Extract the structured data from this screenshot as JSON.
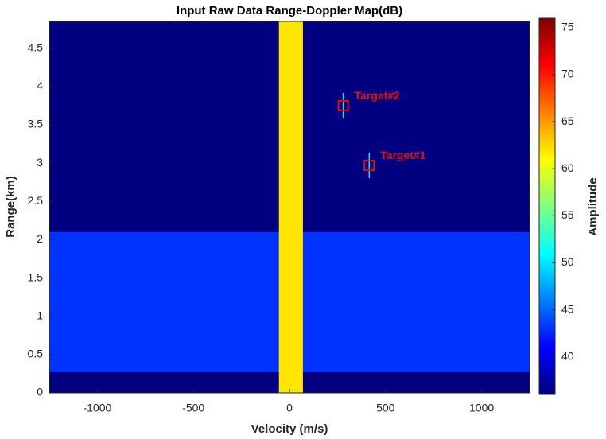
{
  "chart_data": {
    "type": "heatmap",
    "title": "Input Raw Data Range-Doppler Map(dB)",
    "x_label": "Velocity (m/s)",
    "y_label": "Range(km)",
    "colorbar_label": "Amplitude",
    "colormap": "jet",
    "xlim": [
      -1250,
      1250
    ],
    "ylim": [
      0,
      4.85
    ],
    "xticks": [
      -1000,
      -500,
      0,
      500,
      1000
    ],
    "yticks": [
      0,
      0.5,
      1,
      1.5,
      2,
      2.5,
      3,
      3.5,
      4,
      4.5
    ],
    "clim": [
      36,
      76
    ],
    "cticks": [
      40,
      45,
      50,
      55,
      60,
      65,
      70,
      75
    ],
    "regions": [
      {
        "x": [
          -1250,
          1250
        ],
        "y": [
          0,
          4.85
        ],
        "value": 36
      },
      {
        "x": [
          -1250,
          1250
        ],
        "y": [
          0.27,
          2.1
        ],
        "value": 43
      },
      {
        "x": [
          -55,
          70
        ],
        "y": [
          0,
          4.85
        ],
        "value": 62
      }
    ],
    "annotations": [
      {
        "text": "Target#1",
        "x": 415,
        "y": 2.97,
        "value": 50
      },
      {
        "text": "Target#2",
        "x": 280,
        "y": 3.75,
        "value": 50
      }
    ]
  }
}
